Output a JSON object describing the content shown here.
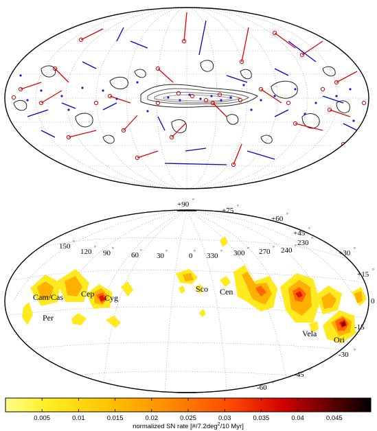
{
  "top_map": {
    "panel": "sky-map-tracks-and-contours"
  },
  "bottom_map": {
    "latitude_labels": [
      "+90",
      "+75",
      "+60",
      "+45",
      "+30",
      "+15",
      "0",
      "-15",
      "-30",
      "-45",
      "-60"
    ],
    "longitude_labels": [
      "150",
      "120",
      "90",
      "60",
      "30",
      "0",
      "330",
      "300",
      "270",
      "240",
      "230"
    ],
    "region_labels": [
      "Cam/Cas",
      "Cep",
      "Cyg",
      "Per",
      "Sco",
      "Cen",
      "Vela",
      "Ori"
    ]
  },
  "colorbar": {
    "ticks": [
      "0.005",
      "0.01",
      "0.015",
      "0.02",
      "0.025",
      "0.03",
      "0.035",
      "0.04",
      "0.045"
    ],
    "title_prefix": "normalized SN rate [#/7.2deg",
    "title_sup": "2",
    "title_suffix": "/10 Myr]",
    "min": 0,
    "max": 0.05,
    "colors": [
      "#ffff8c",
      "#ffd400",
      "#ff9800",
      "#ff4800",
      "#d20000",
      "#7a0000",
      "#000000"
    ]
  }
}
